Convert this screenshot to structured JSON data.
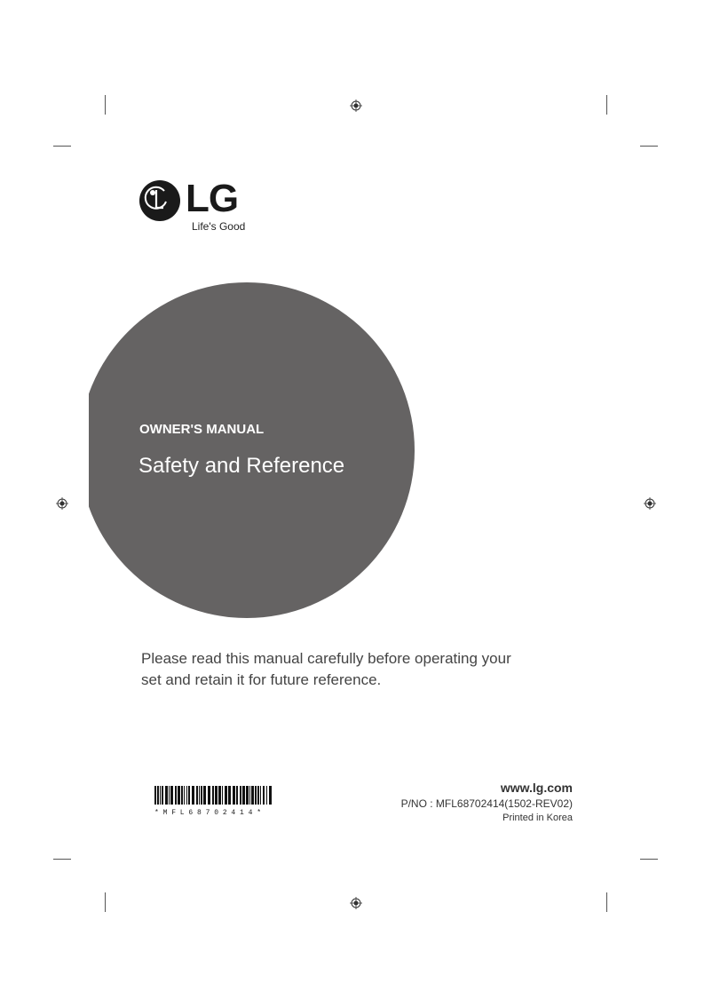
{
  "brand": {
    "name": "LG",
    "tagline": "Life's Good"
  },
  "cover": {
    "subtitle": "OWNER'S MANUAL",
    "title": "Safety and Reference",
    "circle_color": "#656363"
  },
  "notice": {
    "line1": "Please read this manual carefully before operating your",
    "line2": "set and retain it for future reference."
  },
  "barcode": {
    "text": "* M F L 6 8 7 0 2 4 1 4 *"
  },
  "footer": {
    "website": "www.lg.com",
    "part_number": "P/NO : MFL68702414(1502-REV02)",
    "printed": "Printed in Korea"
  }
}
